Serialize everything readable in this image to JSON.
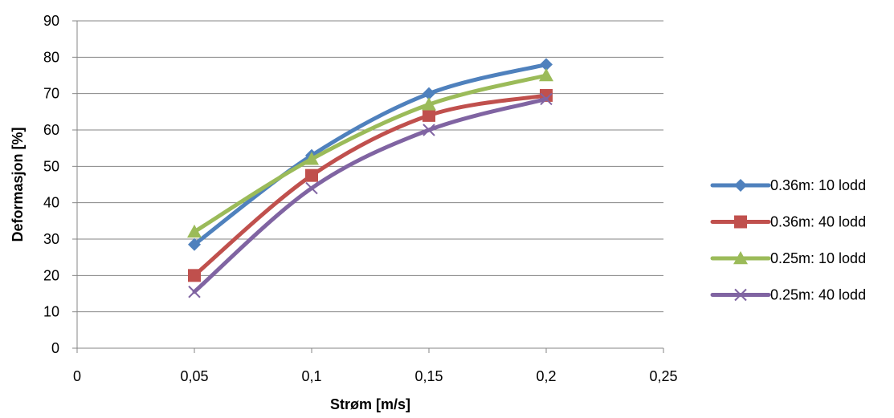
{
  "chart_data": {
    "type": "line",
    "title": "",
    "xlabel": "Strøm [m/s]",
    "ylabel": "Deformasjon [%]",
    "xlim": [
      0,
      0.25
    ],
    "ylim": [
      0,
      90
    ],
    "x_ticks": [
      "0",
      "0,05",
      "0,1",
      "0,15",
      "0,2",
      "0,25"
    ],
    "x_tick_values": [
      0,
      0.05,
      0.1,
      0.15,
      0.2,
      0.25
    ],
    "y_ticks": [
      "0",
      "10",
      "20",
      "30",
      "40",
      "50",
      "60",
      "70",
      "80",
      "90"
    ],
    "y_tick_values": [
      0,
      10,
      20,
      30,
      40,
      50,
      60,
      70,
      80,
      90
    ],
    "grid": "horizontal",
    "legend_position": "right",
    "smooth": true,
    "series": [
      {
        "name": "0.36m: 10 lodd",
        "color": "#4F81BD",
        "marker": "diamond",
        "x": [
          0.05,
          0.1,
          0.15,
          0.2
        ],
        "y": [
          28.5,
          53,
          70,
          78
        ]
      },
      {
        "name": "0.36m: 40 lodd",
        "color": "#C0504D",
        "marker": "square",
        "x": [
          0.05,
          0.1,
          0.15,
          0.2
        ],
        "y": [
          20,
          47.5,
          64,
          69.5
        ]
      },
      {
        "name": "0.25m: 10 lodd",
        "color": "#9BBB59",
        "marker": "triangle",
        "x": [
          0.05,
          0.1,
          0.15,
          0.2
        ],
        "y": [
          32,
          52,
          67,
          75
        ]
      },
      {
        "name": "0.25m: 40 lodd",
        "color": "#8064A2",
        "marker": "x",
        "x": [
          0.05,
          0.1,
          0.15,
          0.2
        ],
        "y": [
          15.5,
          44,
          60,
          68.5
        ]
      }
    ]
  }
}
